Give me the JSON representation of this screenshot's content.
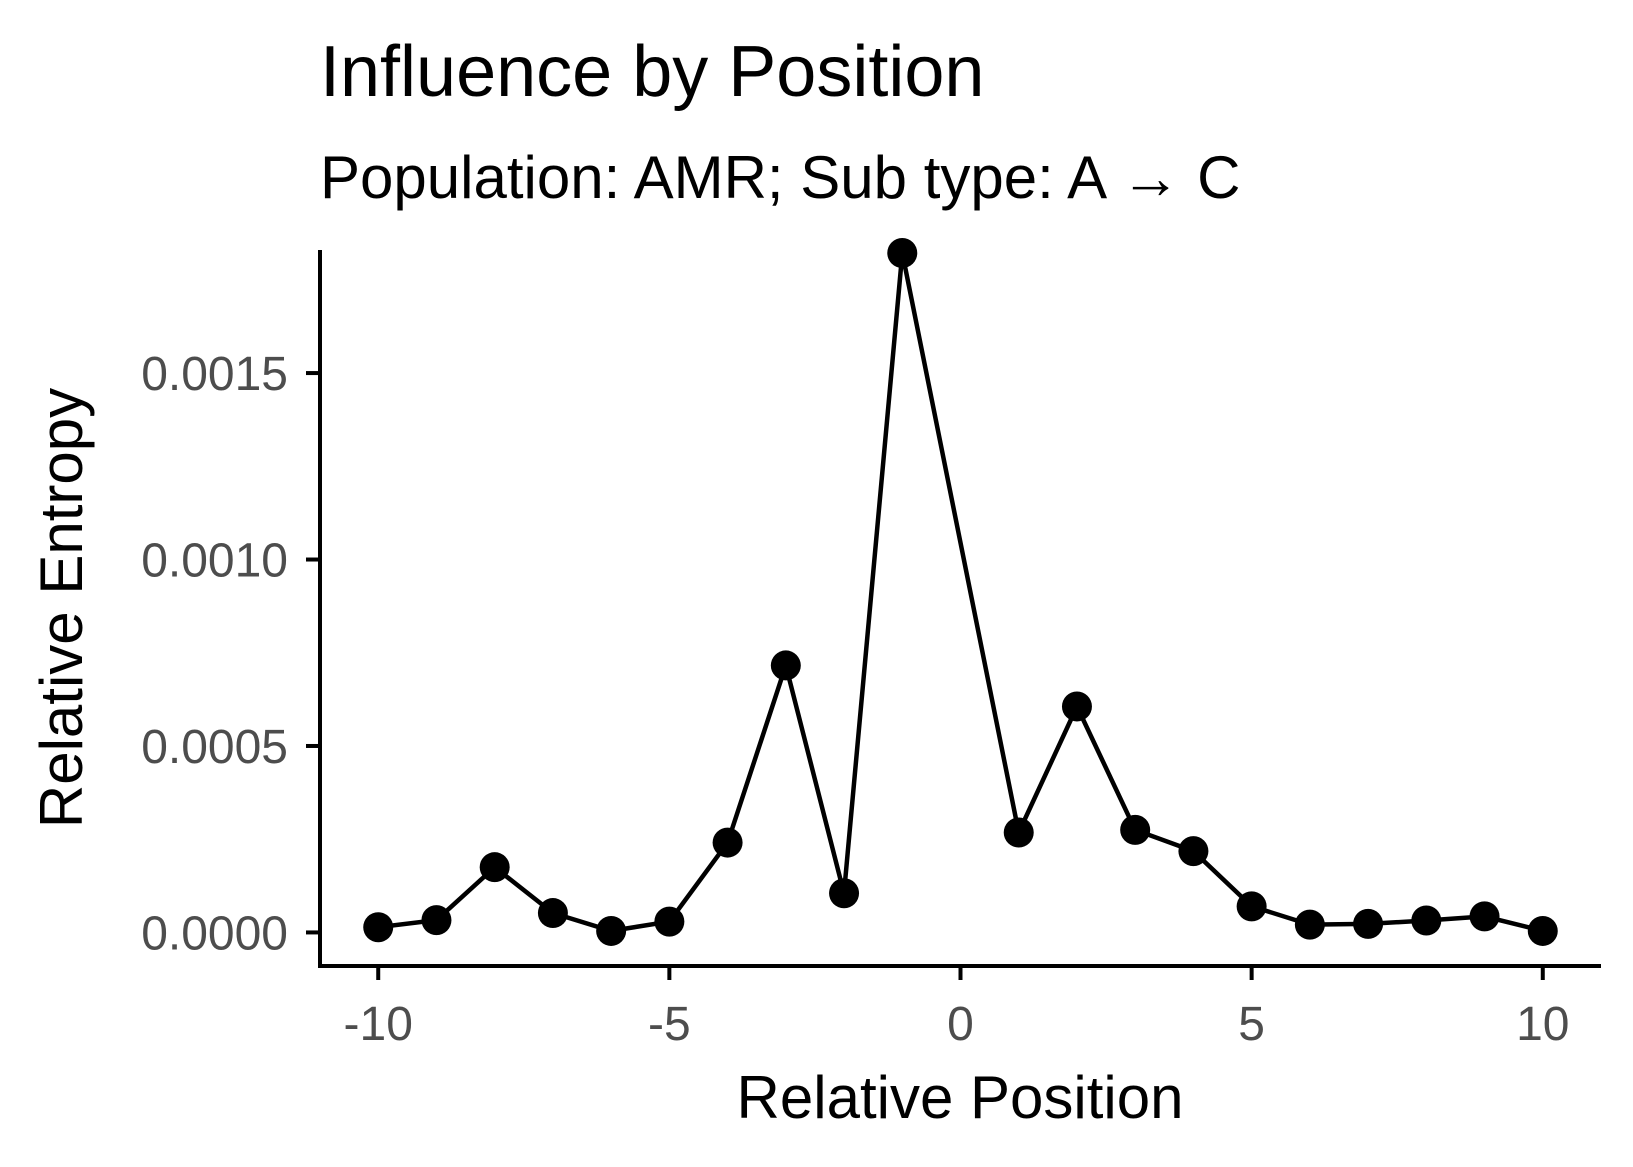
{
  "chart_data": {
    "type": "line",
    "title": "Influence by Position",
    "subtitle": "Population: AMR; Sub type: A → C",
    "xlabel": "Relative Position",
    "ylabel": "Relative Entropy",
    "xlim": [
      -11,
      11
    ],
    "ylim": [
      -9e-05,
      0.00183
    ],
    "x_ticks": [
      -10,
      -5,
      0,
      5,
      10
    ],
    "x_tick_labels": [
      "-10",
      "-5",
      "0",
      "5",
      "10"
    ],
    "y_ticks": [
      0.0,
      0.0005,
      0.001,
      0.0015
    ],
    "y_tick_labels": [
      "0.0000",
      "0.0005",
      "0.0010",
      "0.0015"
    ],
    "grid": false,
    "legend": "none",
    "series": [
      {
        "color": "#000000",
        "markers": "filled-circle",
        "x": [
          -10,
          -9,
          -8,
          -7,
          -6,
          -5,
          -4,
          -3,
          -2,
          -1,
          1,
          2,
          3,
          4,
          5,
          6,
          7,
          8,
          9,
          10
        ],
        "y": [
          1.4e-05,
          3.3e-05,
          0.000175,
          5.2e-05,
          4e-06,
          2.9e-05,
          0.000241,
          0.000716,
          0.000105,
          0.001822,
          0.000268,
          0.000606,
          0.000275,
          0.000218,
          7e-05,
          2.1e-05,
          2.3e-05,
          3.2e-05,
          4.3e-05,
          4e-06
        ]
      }
    ]
  }
}
